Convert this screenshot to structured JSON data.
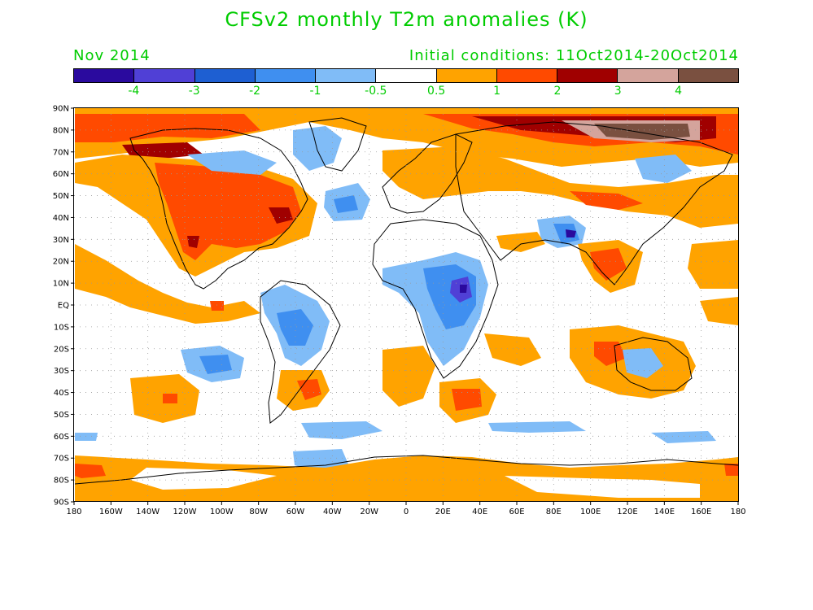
{
  "title": "CFSv2 monthly T2m anomalies (K)",
  "month": "Nov 2014",
  "init": "Initial conditions: 11Oct2014-20Oct2014",
  "colors": {
    "text_green": "#00cc00",
    "land_outline": "#000000",
    "grid": "#999999"
  },
  "colorbar": {
    "swatches": [
      "#2a0a9e",
      "#5040d6",
      "#1e5fd2",
      "#3f8ff0",
      "#80bcf7",
      "#ffffff",
      "#ffa300",
      "#ff4a00",
      "#a00000",
      "#d4a49c",
      "#7a5040"
    ],
    "labels": [
      "-4",
      "-3",
      "-2",
      "-1",
      "-0.5",
      "0.5",
      "1",
      "2",
      "3",
      "4"
    ]
  },
  "axes": {
    "y_labels": [
      "90N",
      "80N",
      "70N",
      "60N",
      "50N",
      "40N",
      "30N",
      "20N",
      "10N",
      "EQ",
      "10S",
      "20S",
      "30S",
      "40S",
      "50S",
      "60S",
      "70S",
      "80S",
      "90S"
    ],
    "x_labels": [
      "180",
      "160W",
      "140W",
      "120W",
      "100W",
      "80W",
      "60W",
      "40W",
      "20W",
      "0",
      "20E",
      "40E",
      "60E",
      "80E",
      "100E",
      "120E",
      "140E",
      "160E",
      "180"
    ]
  }
}
